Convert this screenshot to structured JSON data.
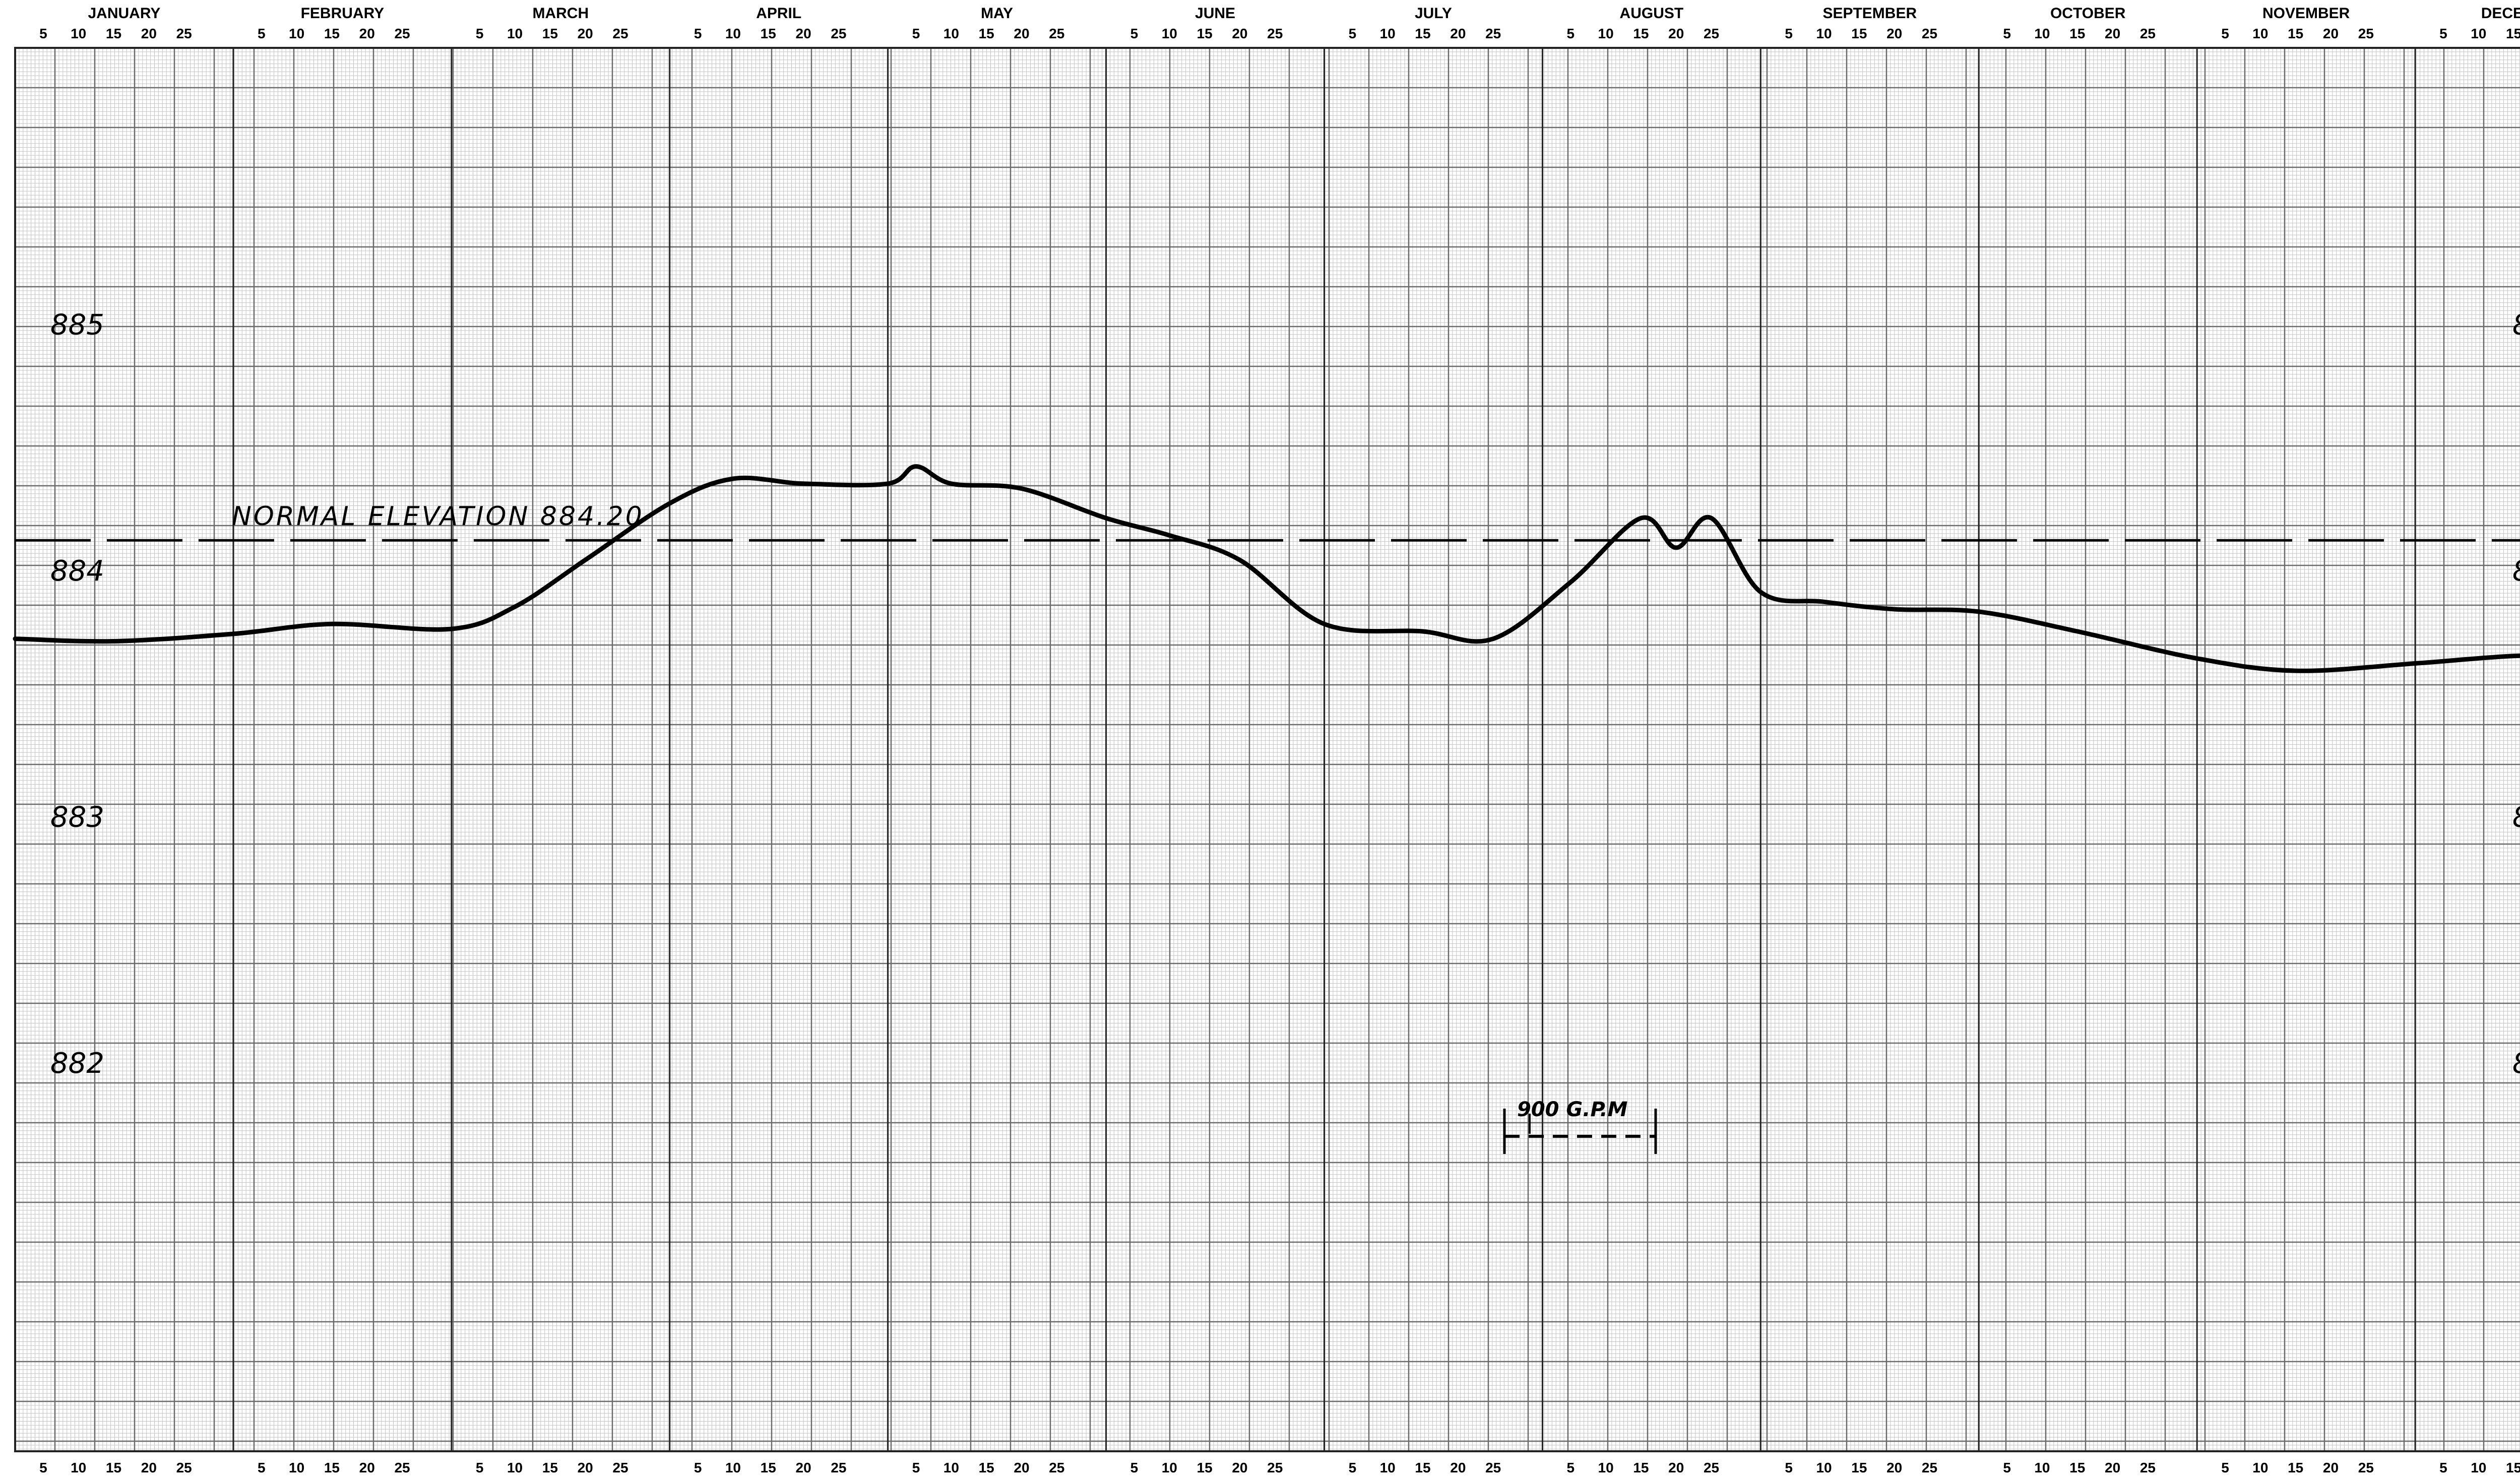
{
  "chart_data": {
    "type": "line",
    "title": "",
    "xlabel": "",
    "ylabel": "",
    "months": [
      "JANUARY",
      "FEBRUARY",
      "MARCH",
      "APRIL",
      "MAY",
      "JUNE",
      "JULY",
      "AUGUST",
      "SEPTEMBER",
      "OCTOBER",
      "NOVEMBER",
      "DECEMBER"
    ],
    "day_ticks": [
      "5",
      "10",
      "15",
      "20",
      "25"
    ],
    "yticks": [
      885,
      884,
      883,
      882
    ],
    "ylim": [
      880.5,
      886.2
    ],
    "grid": true,
    "reference_line": {
      "label": "NORMAL ELEVATION 884.20",
      "value": 884.2,
      "style": "dashed"
    },
    "scale_annotation": "900 G.P.M",
    "series": [
      {
        "x": [
          "Jan 1",
          "Jan 15",
          "Feb 1",
          "Feb 15",
          "Mar 1",
          "Mar 10",
          "Mar 20",
          "Apr 1",
          "Apr 10",
          "Apr 20",
          "May 1",
          "May 5",
          "May 10",
          "May 20",
          "Jun 1",
          "Jun 10",
          "Jun 20",
          "Jul 1",
          "Jul 15",
          "Jul 25",
          "Aug 5",
          "Aug 15",
          "Aug 20",
          "Aug 25",
          "Sep 1",
          "Sep 10",
          "Sep 20",
          "Oct 1",
          "Oct 15",
          "Nov 1",
          "Nov 15",
          "Dec 1",
          "Dec 15",
          "Dec 31"
        ],
        "y": [
          883.8,
          883.79,
          883.82,
          883.86,
          883.84,
          883.93,
          884.12,
          884.35,
          884.45,
          884.43,
          884.43,
          884.5,
          884.43,
          884.41,
          884.29,
          884.22,
          884.12,
          883.86,
          883.83,
          883.8,
          884.03,
          884.29,
          884.17,
          884.29,
          883.99,
          883.95,
          883.92,
          883.91,
          883.83,
          883.72,
          883.67,
          883.7,
          883.73,
          883.74
        ]
      }
    ]
  }
}
